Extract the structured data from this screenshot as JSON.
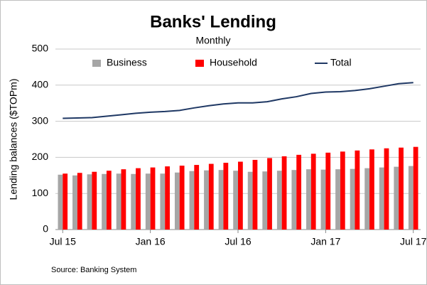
{
  "chart_data": {
    "type": "bar-line",
    "title": "Banks' Lending",
    "subtitle": "Monthly",
    "y_label": "Lending balances ($TOPm)",
    "source": "Source: Banking System",
    "categories": [
      "Jul 15",
      null,
      null,
      null,
      null,
      null,
      "Jan 16",
      null,
      null,
      null,
      null,
      null,
      "Jul 16",
      null,
      null,
      null,
      null,
      null,
      "Jan 17",
      null,
      null,
      null,
      null,
      null,
      "Jul 17"
    ],
    "series": [
      {
        "name": "Business",
        "kind": "bar",
        "color": "#a6a6a6",
        "values": [
          152,
          150,
          153,
          154,
          155,
          154,
          155,
          155,
          158,
          162,
          164,
          165,
          163,
          160,
          161,
          163,
          165,
          167,
          166,
          167,
          168,
          170,
          172,
          174,
          176
        ]
      },
      {
        "name": "Household",
        "kind": "bar",
        "color": "#ff0000",
        "values": [
          155,
          157,
          160,
          163,
          167,
          170,
          172,
          175,
          177,
          179,
          182,
          185,
          188,
          193,
          198,
          203,
          207,
          210,
          213,
          216,
          219,
          222,
          225,
          227,
          229
        ]
      },
      {
        "name": "Total",
        "kind": "line",
        "color": "#1f3864",
        "values": [
          308,
          309,
          310,
          314,
          318,
          322,
          325,
          327,
          330,
          337,
          343,
          348,
          351,
          351,
          354,
          362,
          368,
          377,
          381,
          382,
          385,
          390,
          397,
          404,
          407
        ]
      }
    ],
    "ylim": [
      0,
      500
    ],
    "yticks": [
      0,
      100,
      200,
      300,
      400,
      500
    ],
    "grid": true
  }
}
